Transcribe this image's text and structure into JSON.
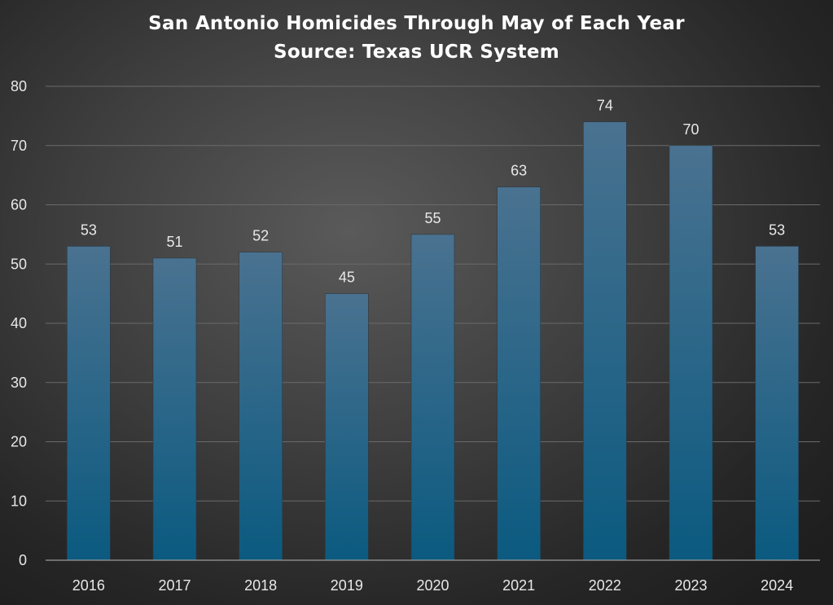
{
  "chart_data": {
    "type": "bar",
    "title": "San Antonio Homicides Through May of Each Year",
    "subtitle": "Source: Texas UCR System",
    "categories": [
      "2016",
      "2017",
      "2018",
      "2019",
      "2020",
      "2021",
      "2022",
      "2023",
      "2024"
    ],
    "values": [
      53,
      51,
      52,
      45,
      55,
      63,
      74,
      70,
      53
    ],
    "xlabel": "",
    "ylabel": "",
    "ylim": [
      0,
      80
    ],
    "yticks": [
      0,
      10,
      20,
      30,
      40,
      50,
      60,
      70,
      80
    ],
    "grid": true,
    "legend": "none",
    "data_labels": true,
    "colors": {
      "bar_top": "#4a7290",
      "bar_bottom": "#0b5a80",
      "text": "#e8e8e8",
      "title": "#ffffff"
    }
  }
}
